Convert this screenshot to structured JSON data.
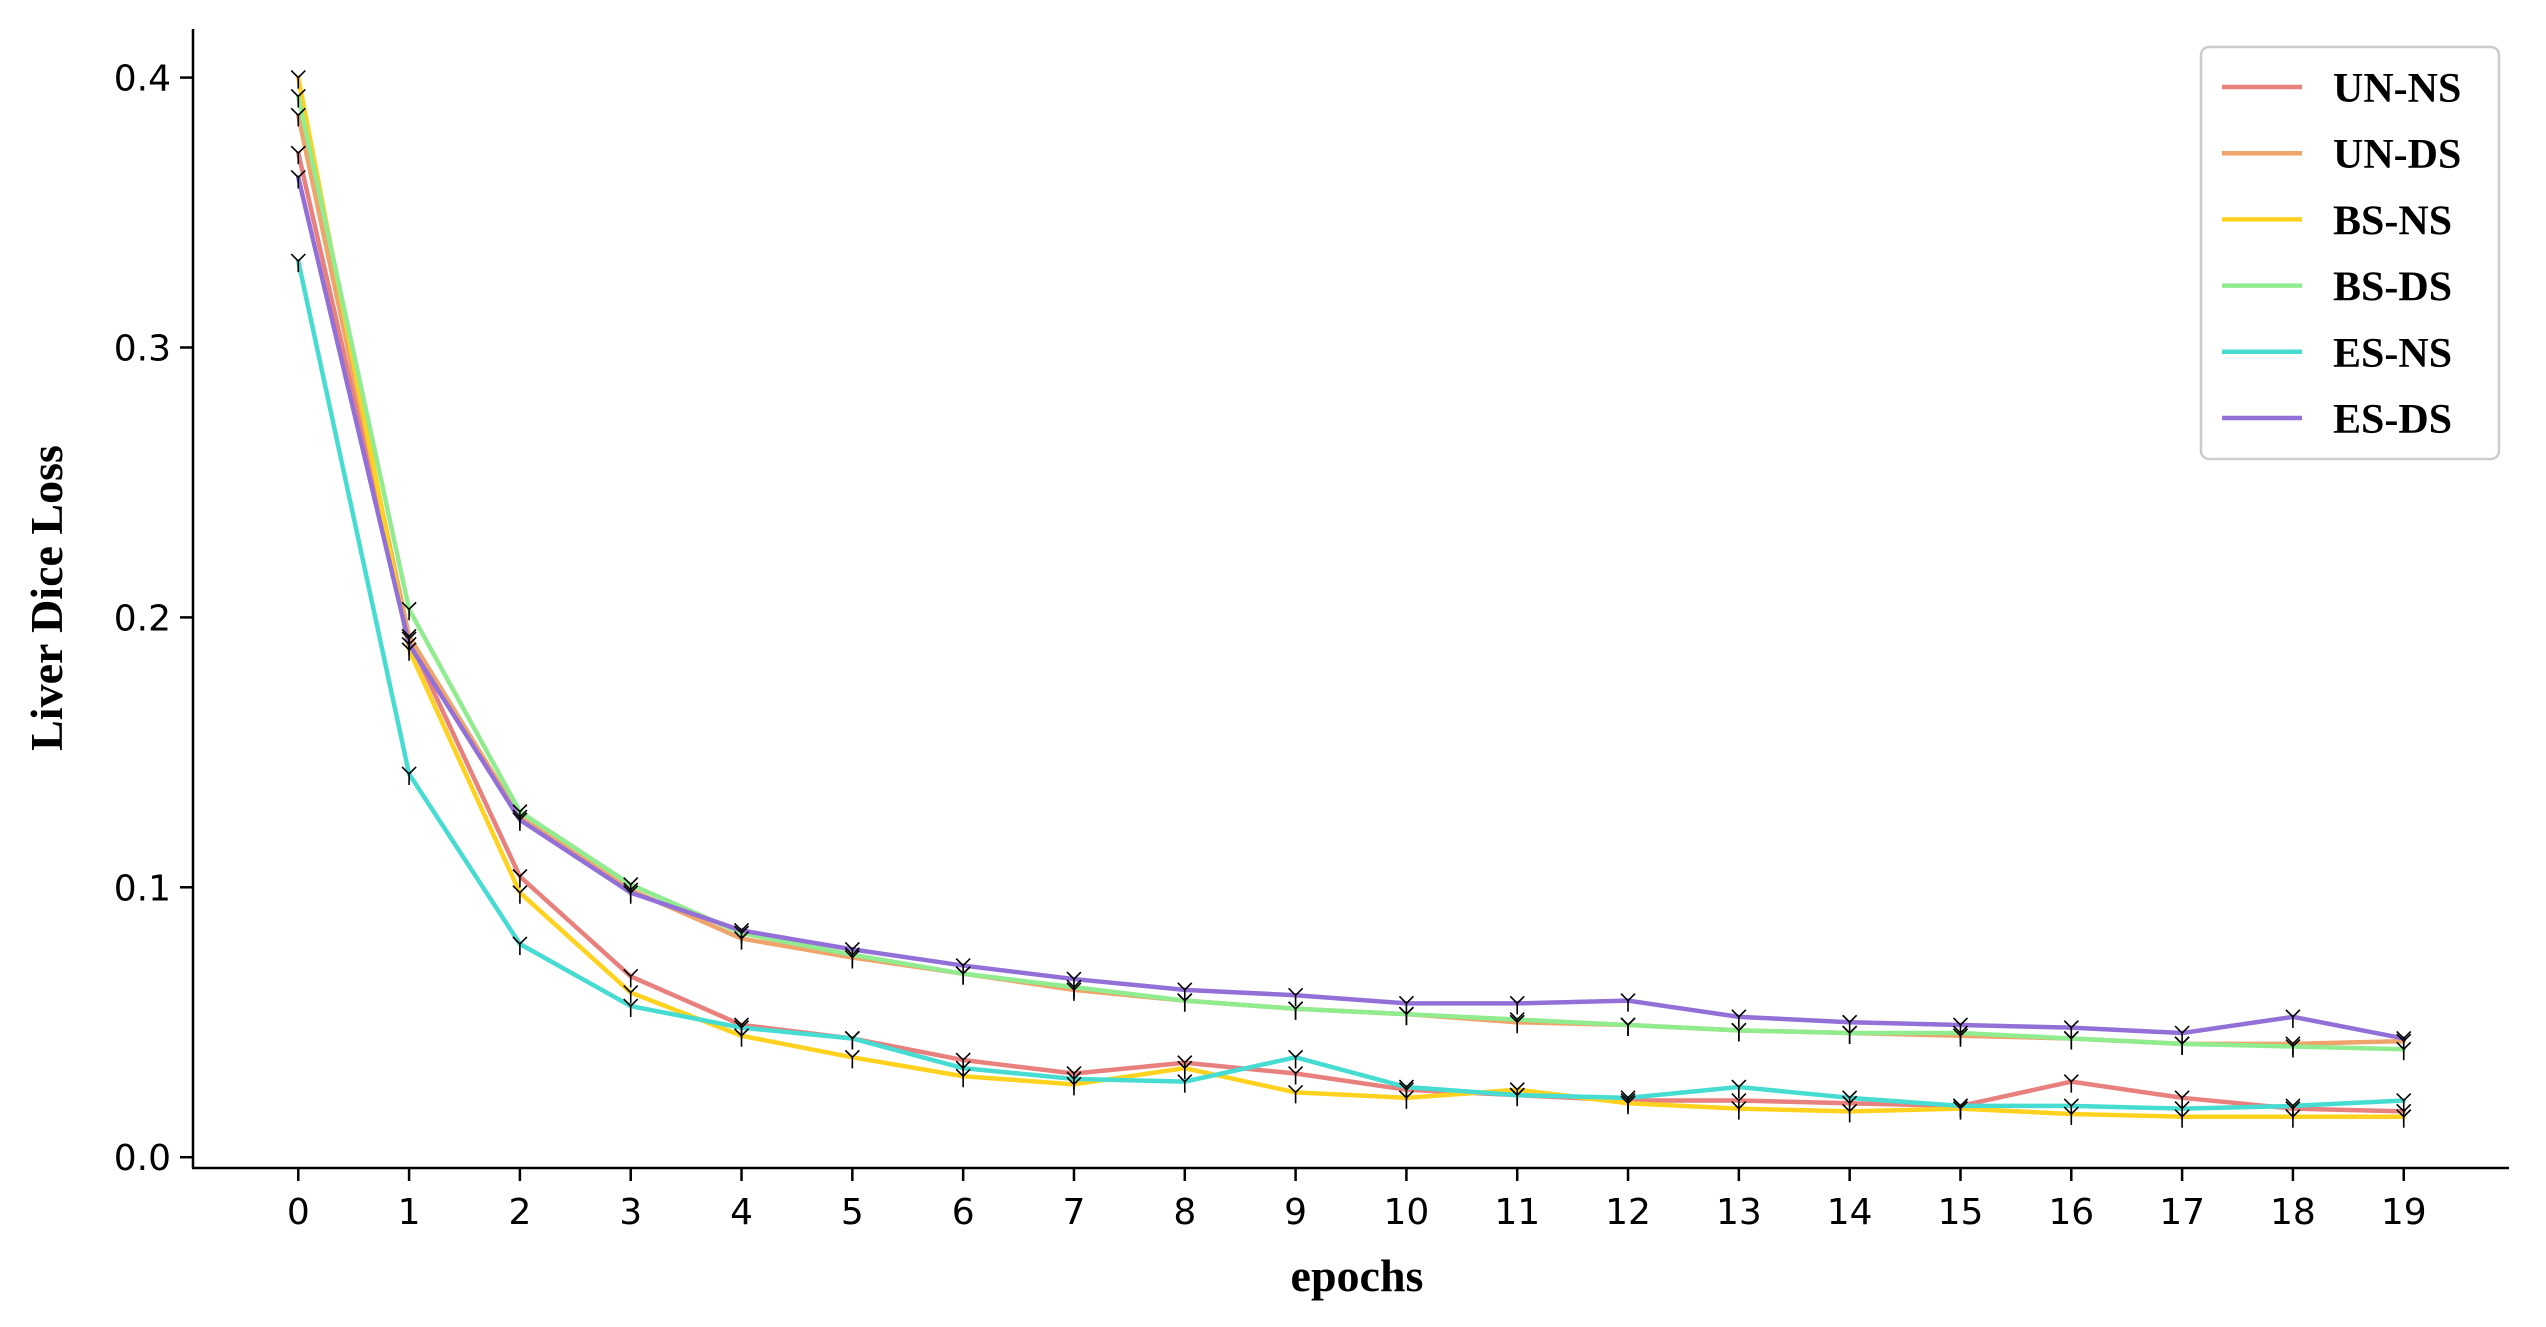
{
  "chart_data": {
    "type": "line",
    "xlabel": "epochs",
    "ylabel": "Liver Dice Loss",
    "x": [
      0,
      1,
      2,
      3,
      4,
      5,
      6,
      7,
      8,
      9,
      10,
      11,
      12,
      13,
      14,
      15,
      16,
      17,
      18,
      19
    ],
    "xticks": [
      "0",
      "1",
      "2",
      "3",
      "4",
      "5",
      "6",
      "7",
      "8",
      "9",
      "10",
      "11",
      "12",
      "13",
      "14",
      "15",
      "16",
      "17",
      "18",
      "19"
    ],
    "xlim": [
      -0.95,
      19.95
    ],
    "ylim": [
      -0.004,
      0.418
    ],
    "yticks": [
      "0.0",
      "0.1",
      "0.2",
      "0.3",
      "0.4"
    ],
    "grid": false,
    "legend_position": "top-right",
    "series": [
      {
        "name": "UN-NS",
        "color": "#e8807e",
        "values": [
          0.372,
          0.192,
          0.104,
          0.067,
          0.049,
          0.044,
          0.036,
          0.031,
          0.035,
          0.031,
          0.025,
          0.023,
          0.021,
          0.021,
          0.02,
          0.019,
          0.028,
          0.022,
          0.018,
          0.017
        ]
      },
      {
        "name": "UN-DS",
        "color": "#eea46a",
        "values": [
          0.386,
          0.193,
          0.126,
          0.099,
          0.081,
          0.074,
          0.068,
          0.062,
          0.058,
          0.055,
          0.053,
          0.05,
          0.049,
          0.047,
          0.046,
          0.045,
          0.044,
          0.042,
          0.042,
          0.043
        ]
      },
      {
        "name": "BS-NS",
        "color": "#ffd21f",
        "values": [
          0.4,
          0.188,
          0.098,
          0.061,
          0.045,
          0.037,
          0.03,
          0.027,
          0.033,
          0.024,
          0.022,
          0.025,
          0.02,
          0.018,
          0.017,
          0.018,
          0.016,
          0.015,
          0.015,
          0.015
        ]
      },
      {
        "name": "BS-DS",
        "color": "#90ec8f",
        "values": [
          0.393,
          0.203,
          0.128,
          0.101,
          0.083,
          0.075,
          0.068,
          0.063,
          0.058,
          0.055,
          0.053,
          0.051,
          0.049,
          0.047,
          0.046,
          0.046,
          0.044,
          0.042,
          0.041,
          0.04
        ]
      },
      {
        "name": "ES-NS",
        "color": "#46dcd2",
        "values": [
          0.332,
          0.142,
          0.079,
          0.056,
          0.048,
          0.044,
          0.033,
          0.029,
          0.028,
          0.037,
          0.026,
          0.023,
          0.022,
          0.026,
          0.022,
          0.019,
          0.019,
          0.018,
          0.019,
          0.021
        ]
      },
      {
        "name": "ES-DS",
        "color": "#9270d8",
        "values": [
          0.363,
          0.19,
          0.125,
          0.098,
          0.084,
          0.077,
          0.071,
          0.066,
          0.062,
          0.06,
          0.057,
          0.057,
          0.058,
          0.052,
          0.05,
          0.049,
          0.048,
          0.046,
          0.052,
          0.044
        ]
      }
    ]
  }
}
